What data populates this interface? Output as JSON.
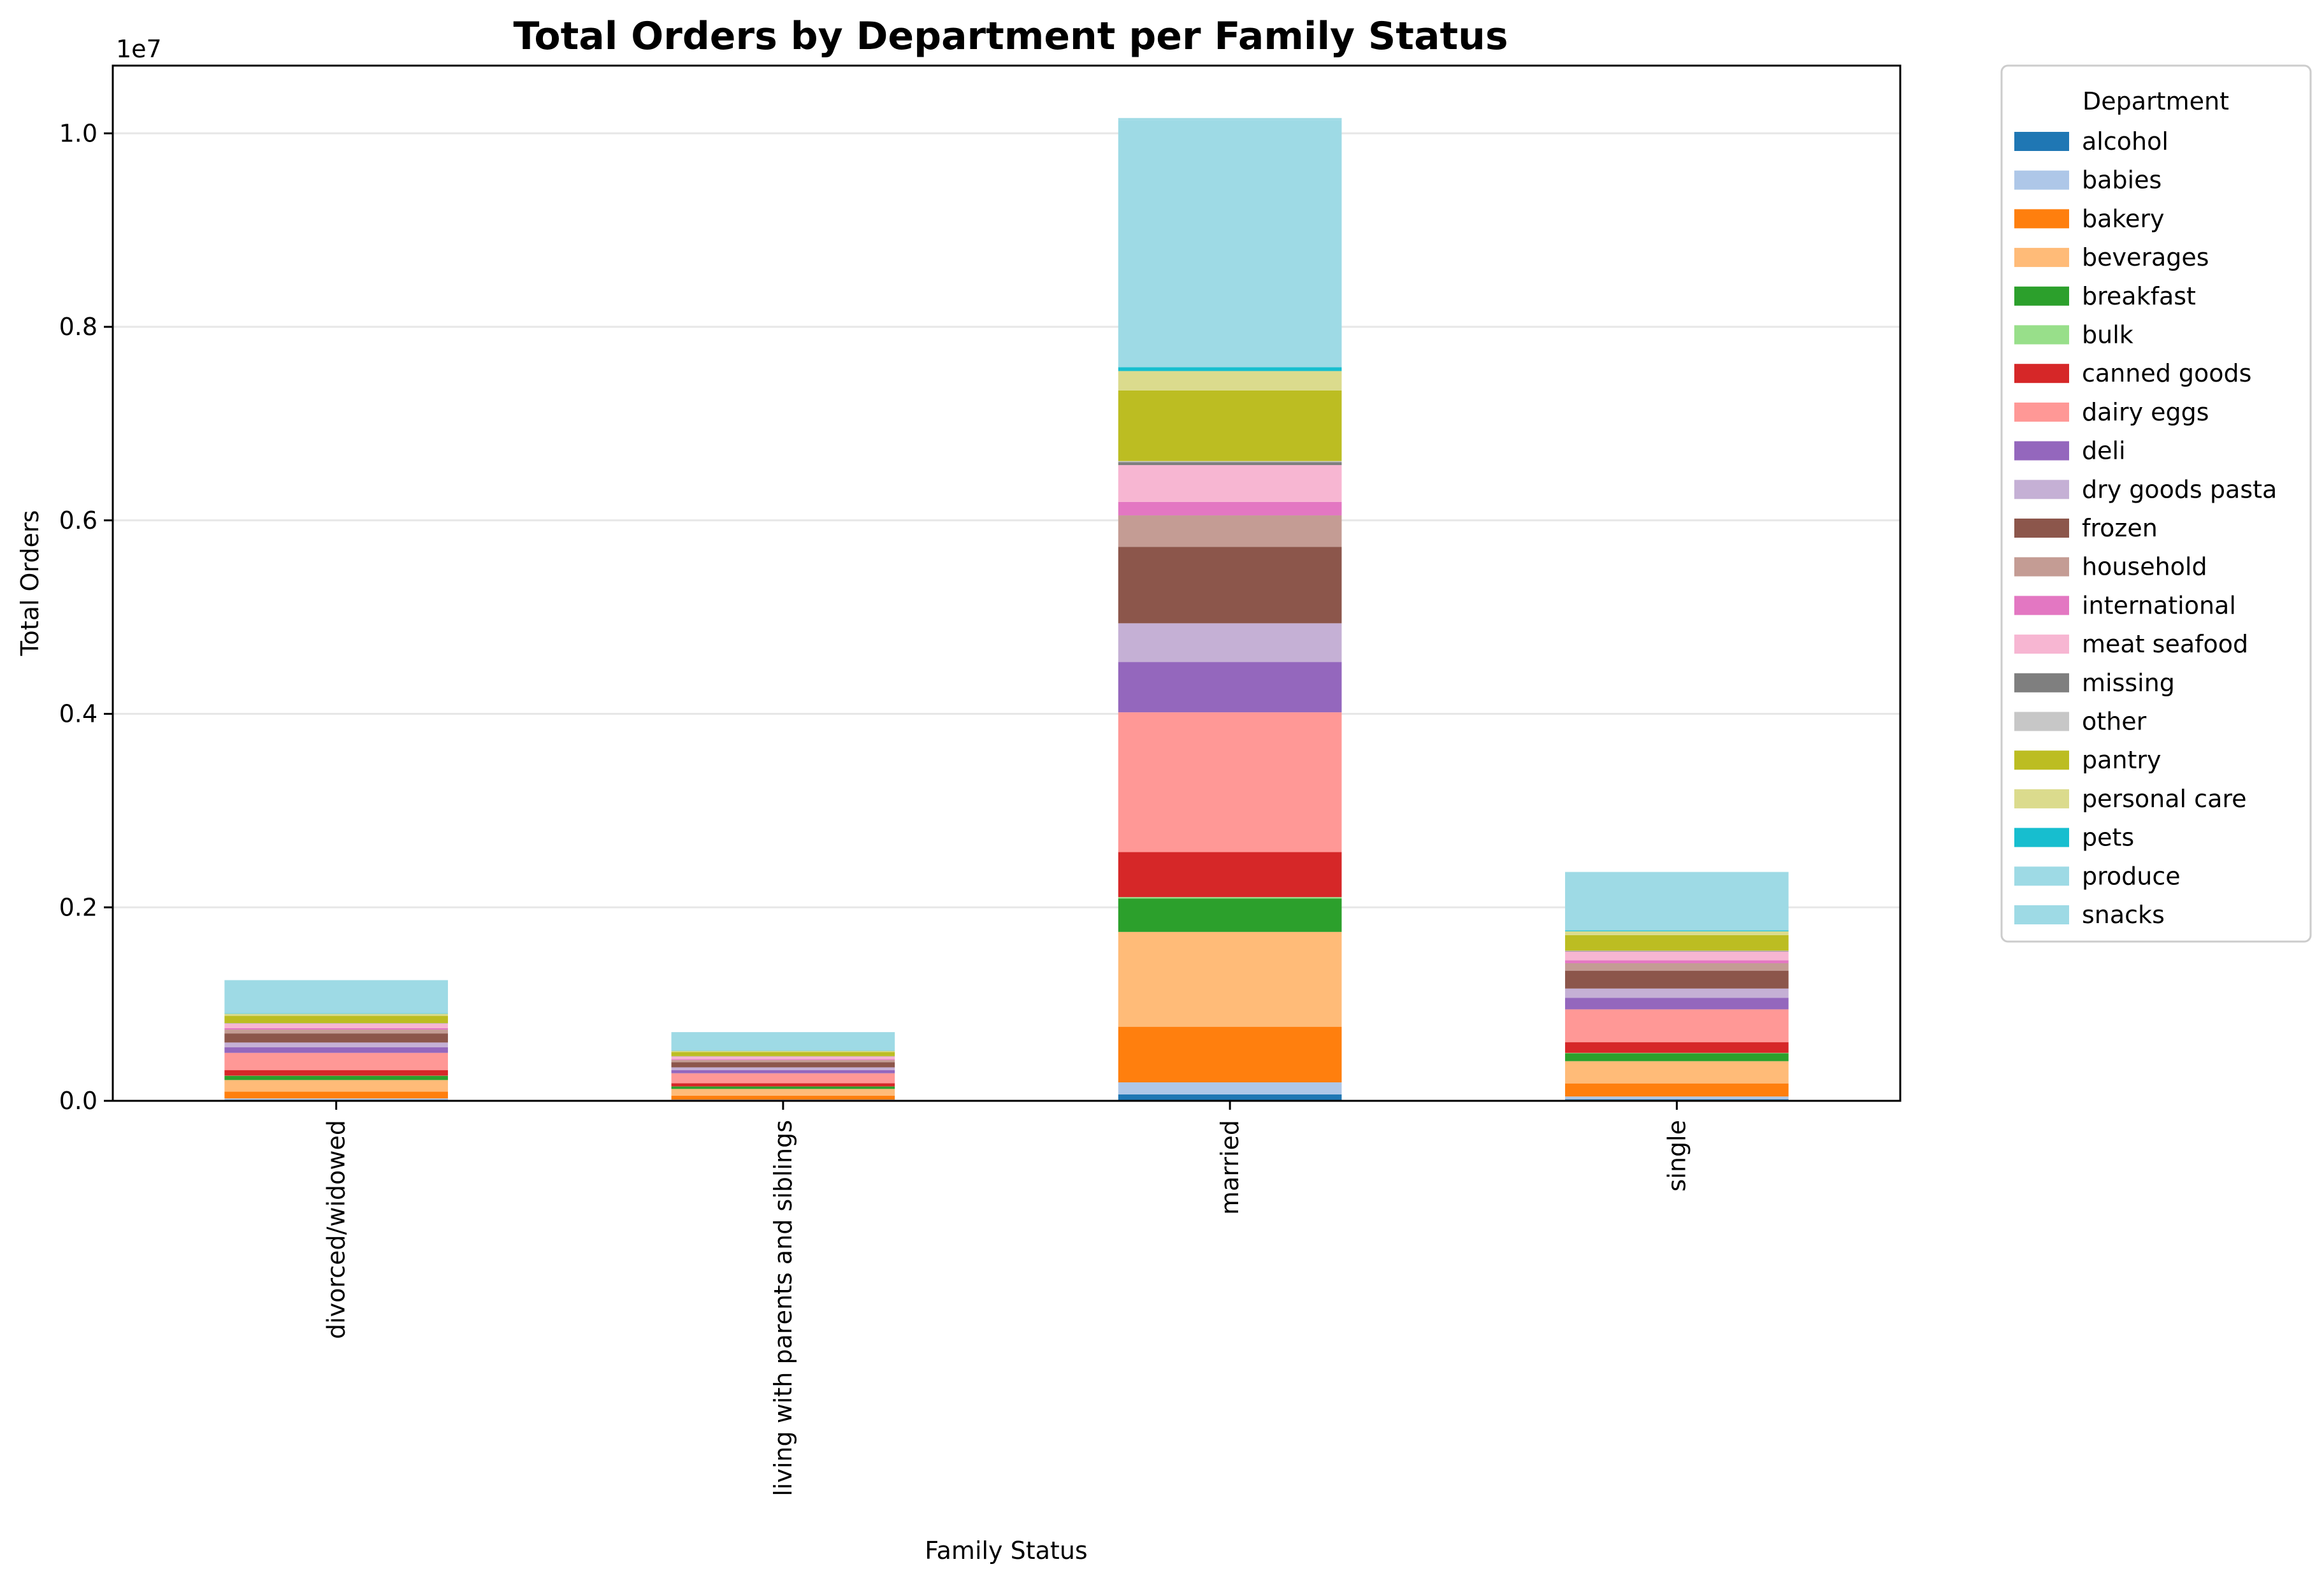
{
  "chart_data": {
    "type": "bar",
    "stacked": true,
    "title": "Total Orders by Department per Family Status",
    "xlabel": "Family Status",
    "ylabel": "Total Orders",
    "offset_label": "1e7",
    "ylim": [
      0,
      10700000
    ],
    "y_ticks": [
      0,
      2000000,
      4000000,
      6000000,
      8000000,
      10000000
    ],
    "y_tick_labels": [
      "0.0",
      "0.2",
      "0.4",
      "0.6",
      "0.8",
      "1.0"
    ],
    "grid": "y",
    "categories": [
      "divorced/widowed",
      "living with parents and siblings",
      "married",
      "single"
    ],
    "legend": {
      "title": "Department",
      "placement": "outside-right"
    },
    "series": [
      {
        "name": "alcohol",
        "color": "#1f77b4",
        "values": [
          8000,
          4000,
          67000,
          16000
        ]
      },
      {
        "name": "babies",
        "color": "#aec7e8",
        "values": [
          17000,
          9000,
          124000,
          29000
        ]
      },
      {
        "name": "bakery",
        "color": "#ff7f0e",
        "values": [
          70000,
          40000,
          575000,
          135000
        ]
      },
      {
        "name": "beverages",
        "color": "#ffbb78",
        "values": [
          120000,
          70000,
          980000,
          230000
        ]
      },
      {
        "name": "breakfast",
        "color": "#2ca02c",
        "values": [
          43000,
          25000,
          345000,
          82000
        ]
      },
      {
        "name": "bulk",
        "color": "#98df8a",
        "values": [
          2000,
          1000,
          15000,
          3500
        ]
      },
      {
        "name": "canned goods",
        "color": "#d62728",
        "values": [
          58000,
          33000,
          465000,
          110000
        ]
      },
      {
        "name": "dairy eggs",
        "color": "#ff9896",
        "values": [
          178000,
          103000,
          1445000,
          340000
        ]
      },
      {
        "name": "deli",
        "color": "#9467bd",
        "values": [
          57000,
          33000,
          520000,
          120000
        ]
      },
      {
        "name": "dry goods pasta",
        "color": "#c5b0d5",
        "values": [
          50000,
          28000,
          400000,
          95000
        ]
      },
      {
        "name": "frozen",
        "color": "#8c564b",
        "values": [
          94000,
          54000,
          790000,
          185000
        ]
      },
      {
        "name": "household",
        "color": "#c49c94",
        "values": [
          40000,
          23000,
          325000,
          77000
        ]
      },
      {
        "name": "international",
        "color": "#e377c2",
        "values": [
          14000,
          8000,
          140000,
          30000
        ]
      },
      {
        "name": "meat seafood",
        "color": "#f7b6d2",
        "values": [
          48000,
          28000,
          380000,
          91000
        ]
      },
      {
        "name": "missing",
        "color": "#7f7f7f",
        "values": [
          3000,
          2000,
          30000,
          6000
        ]
      },
      {
        "name": "other",
        "color": "#c7c7c7",
        "values": [
          1500,
          900,
          12000,
          3000
        ]
      },
      {
        "name": "pantry",
        "color": "#bcbd22",
        "values": [
          75000,
          43000,
          730000,
          160000
        ]
      },
      {
        "name": "personal care",
        "color": "#dbdb8d",
        "values": [
          22000,
          12000,
          200000,
          40000
        ]
      },
      {
        "name": "pets",
        "color": "#17becf",
        "values": [
          4000,
          2500,
          40000,
          8500
        ]
      },
      {
        "name": "produce",
        "color": "#9edae5",
        "values": [
          340000,
          190000,
          2555000,
          600000
        ]
      },
      {
        "name": "snacks",
        "color": "#9edae5",
        "values": [
          3000,
          1500,
          20000,
          5000
        ]
      }
    ]
  }
}
